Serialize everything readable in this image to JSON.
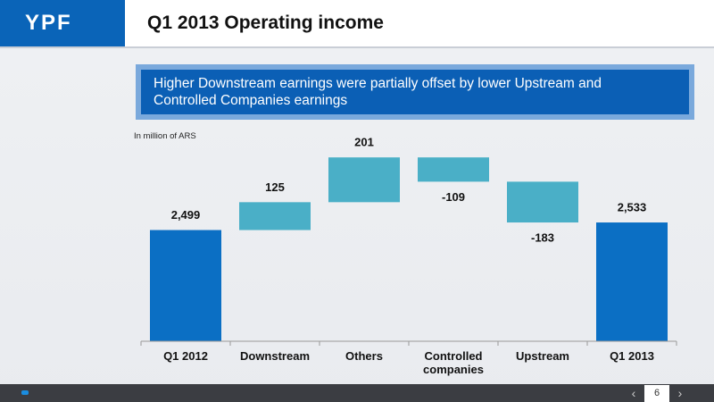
{
  "header": {
    "logo": "YPF",
    "title": "Q1 2013 Operating income"
  },
  "callout": "Higher Downstream earnings were partially offset by lower Upstream and Controlled Companies earnings",
  "chart_data": {
    "type": "waterfall",
    "subtitle": "In million of ARS",
    "categories": [
      "Q1 2012",
      "Downstream",
      "Others",
      "Controlled companies",
      "Upstream",
      "Q1 2013"
    ],
    "values": [
      2499,
      125,
      201,
      -109,
      -183,
      2533
    ],
    "value_labels": [
      "2,499",
      "125",
      "201",
      "-109",
      "-183",
      "2,533"
    ],
    "total_color": "#0b6fc4",
    "delta_color": "#4aafc7",
    "ylim": [
      2000,
      2930
    ]
  },
  "footer": {
    "page": "6"
  }
}
